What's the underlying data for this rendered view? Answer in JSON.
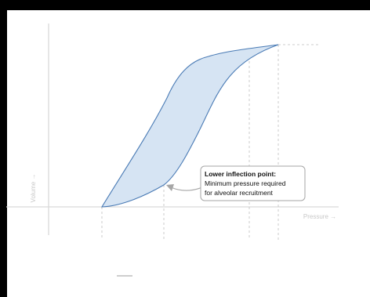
{
  "diagram": {
    "x_axis_label": "Pressure →",
    "y_axis_label": "Volume →",
    "callout": {
      "title": "Lower inflection point:",
      "line1": "Minimum pressure required",
      "line2": "for  alveolar recruitment"
    },
    "colors": {
      "loop_fill": "#d6e4f3",
      "loop_stroke": "#4a7bb5",
      "axis": "#d9d9d9",
      "guide": "#bfbfbf",
      "callout_border": "#a6a6a6",
      "arrow": "#a6a6a6"
    }
  }
}
